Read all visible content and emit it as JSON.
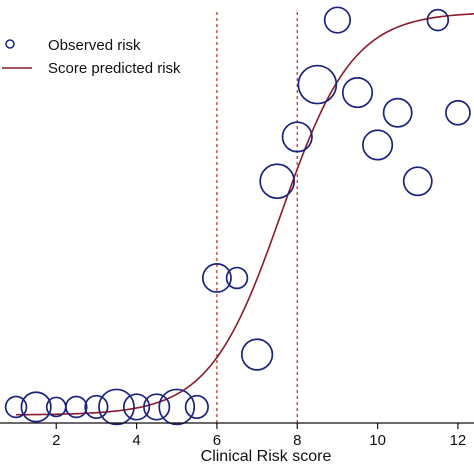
{
  "chart_data": {
    "type": "scatter",
    "xlabel": "Clinical Risk score",
    "ylabel": "",
    "xlim": [
      0.6,
      12.4
    ],
    "ylim": [
      0,
      1
    ],
    "x_ticks": [
      2,
      4,
      6,
      8,
      10,
      12
    ],
    "x_tick_labels": [
      "2",
      "4",
      "6",
      "8",
      "10",
      "12"
    ],
    "reference_lines": [
      6,
      8
    ],
    "reference_line_color": "#c0392b",
    "grid": false,
    "legend": {
      "position": "top-left",
      "entries": [
        "Observed risk",
        "Score predicted risk"
      ]
    },
    "series": [
      {
        "name": "Observed risk",
        "kind": "bubble",
        "color": "#1a237e",
        "points": [
          {
            "x": 1.0,
            "y": 0.02,
            "size": 0.3
          },
          {
            "x": 1.5,
            "y": 0.02,
            "size": 0.6
          },
          {
            "x": 2.0,
            "y": 0.02,
            "size": 0.25
          },
          {
            "x": 2.5,
            "y": 0.02,
            "size": 0.3
          },
          {
            "x": 3.0,
            "y": 0.02,
            "size": 0.35
          },
          {
            "x": 3.5,
            "y": 0.02,
            "size": 0.85
          },
          {
            "x": 4.0,
            "y": 0.02,
            "size": 0.45
          },
          {
            "x": 4.5,
            "y": 0.02,
            "size": 0.45
          },
          {
            "x": 5.0,
            "y": 0.02,
            "size": 0.85
          },
          {
            "x": 5.5,
            "y": 0.02,
            "size": 0.35
          },
          {
            "x": 6.0,
            "y": 0.34,
            "size": 0.55
          },
          {
            "x": 6.5,
            "y": 0.34,
            "size": 0.3
          },
          {
            "x": 7.0,
            "y": 0.15,
            "size": 0.65
          },
          {
            "x": 7.5,
            "y": 0.58,
            "size": 0.8
          },
          {
            "x": 8.0,
            "y": 0.69,
            "size": 0.6
          },
          {
            "x": 8.5,
            "y": 0.82,
            "size": 1.0
          },
          {
            "x": 9.0,
            "y": 0.98,
            "size": 0.45
          },
          {
            "x": 9.5,
            "y": 0.8,
            "size": 0.6
          },
          {
            "x": 10.0,
            "y": 0.67,
            "size": 0.6
          },
          {
            "x": 10.5,
            "y": 0.75,
            "size": 0.55
          },
          {
            "x": 11.0,
            "y": 0.58,
            "size": 0.55
          },
          {
            "x": 11.5,
            "y": 0.98,
            "size": 0.3
          },
          {
            "x": 12.0,
            "y": 0.75,
            "size": 0.4
          }
        ]
      },
      {
        "name": "Score predicted risk",
        "kind": "line",
        "color": "#8b1a2b",
        "curve": "logistic",
        "midpoint": 7.6,
        "slope": 1.12,
        "x_range": [
          1.0,
          12.4
        ]
      }
    ]
  }
}
